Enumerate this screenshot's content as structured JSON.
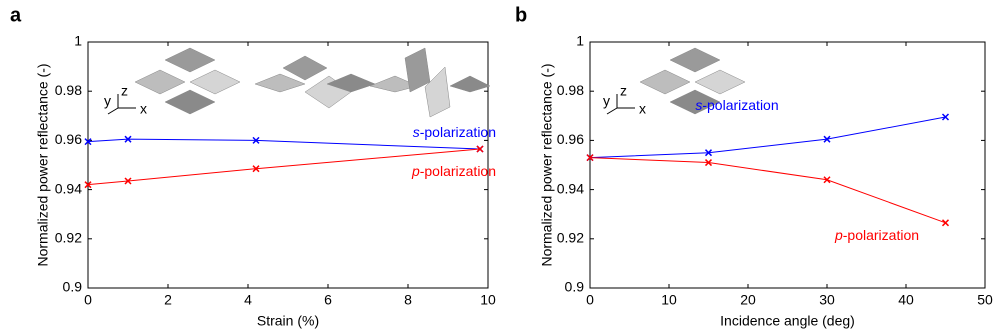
{
  "chart_data": [
    {
      "type": "line",
      "panel_label": "a",
      "xlabel": "Strain (%)",
      "ylabel": "Normalized power reflectance (-)",
      "x": [
        0,
        1,
        4.2,
        9.8
      ],
      "series": [
        {
          "name": "s-polarization",
          "color": "#0000ff",
          "values": [
            0.9595,
            0.9605,
            0.96,
            0.9565
          ]
        },
        {
          "name": "p-polarization",
          "color": "#ff0000",
          "values": [
            0.942,
            0.9435,
            0.9485,
            0.9565
          ]
        }
      ],
      "xlim": [
        0,
        10
      ],
      "xticks": [
        0,
        2,
        4,
        6,
        8,
        10
      ],
      "ylim": [
        0.9,
        1
      ],
      "yticks": [
        0.9,
        0.92,
        0.94,
        0.96,
        0.98,
        1
      ],
      "inset_axis_labels": [
        "x",
        "y",
        "z"
      ]
    },
    {
      "type": "line",
      "panel_label": "b",
      "xlabel": "Incidence angle (deg)",
      "ylabel": "Normalized power reflectance (-)",
      "x": [
        0,
        15,
        30,
        45
      ],
      "series": [
        {
          "name": "s-polarization",
          "color": "#0000ff",
          "values": [
            0.953,
            0.955,
            0.9605,
            0.9695
          ]
        },
        {
          "name": "p-polarization",
          "color": "#ff0000",
          "values": [
            0.953,
            0.951,
            0.944,
            0.9265
          ]
        }
      ],
      "xlim": [
        0,
        50
      ],
      "xticks": [
        0,
        10,
        20,
        30,
        40,
        50
      ],
      "ylim": [
        0.9,
        1
      ],
      "yticks": [
        0.9,
        0.92,
        0.94,
        0.96,
        0.98,
        1
      ],
      "inset_axis_labels": [
        "x",
        "y",
        "z"
      ]
    }
  ]
}
